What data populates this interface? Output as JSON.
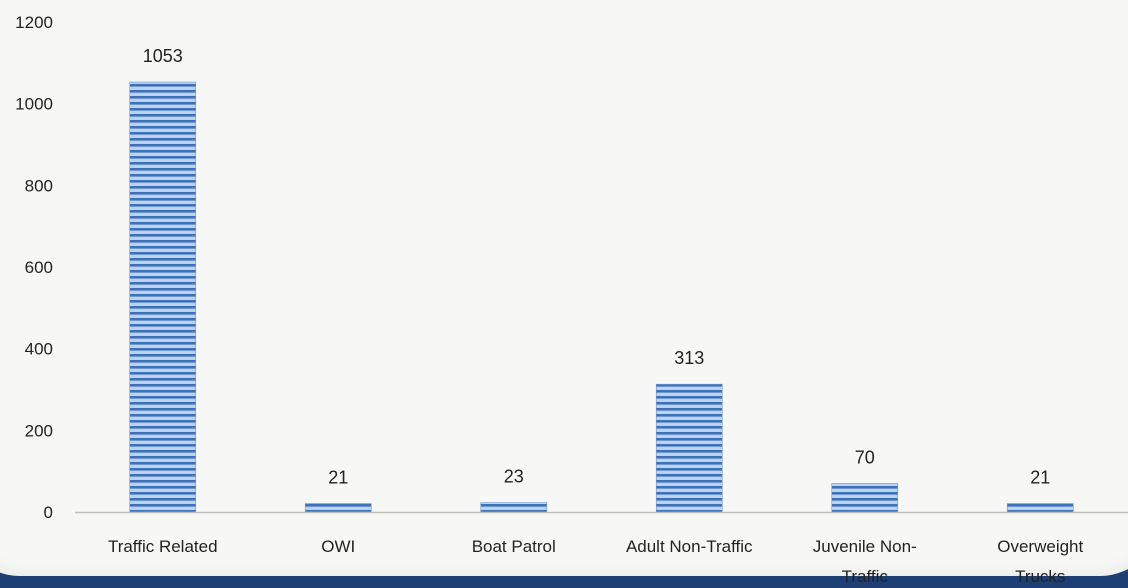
{
  "chart_data": {
    "type": "bar",
    "title": "",
    "xlabel": "",
    "ylabel": "",
    "categories": [
      [
        "Traffic Related"
      ],
      [
        "OWI"
      ],
      [
        "Boat Patrol"
      ],
      [
        "Adult Non-Traffic"
      ],
      [
        "Juvenile Non-",
        "Traffic"
      ],
      [
        "Overweight",
        "Trucks"
      ]
    ],
    "values": [
      1053,
      21,
      23,
      313,
      70,
      21
    ],
    "ylim": [
      0,
      1200
    ],
    "yticks": [
      0,
      200,
      400,
      600,
      800,
      1000,
      1200
    ],
    "grid": false,
    "legend": "none",
    "colors": {
      "bar_dark": "#3d71b8",
      "bar_light": "#bcd3ef",
      "axis": "#bfbfbf",
      "text": "#222222",
      "background": "#f7f8f6",
      "frame": "#1e3f73"
    }
  }
}
